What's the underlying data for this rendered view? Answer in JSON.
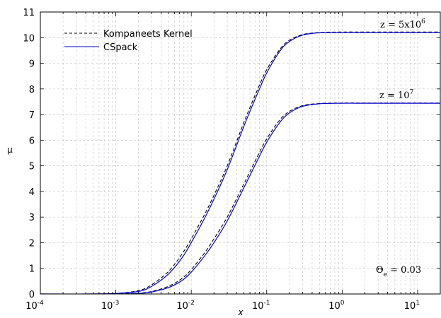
{
  "chart_data": {
    "type": "line",
    "xlabel": "x",
    "ylabel": "μ",
    "xscale": "log",
    "xlim": [
      0.0001,
      20
    ],
    "ylim": [
      0,
      11
    ],
    "x_ticks": [
      {
        "base": "10",
        "exp": "-4",
        "value": 0.0001
      },
      {
        "base": "10",
        "exp": "-3",
        "value": 0.001
      },
      {
        "base": "10",
        "exp": "-2",
        "value": 0.01
      },
      {
        "base": "10",
        "exp": "-1",
        "value": 0.1
      },
      {
        "base": "10",
        "exp": "0",
        "value": 1
      },
      {
        "base": "10",
        "exp": "1",
        "value": 10
      }
    ],
    "y_ticks": [
      "0",
      "1",
      "2",
      "3",
      "4",
      "5",
      "6",
      "7",
      "8",
      "9",
      "10",
      "11"
    ],
    "grid": true,
    "legend_position": "top-left",
    "legend": [
      {
        "label": "Kompaneets Kernel",
        "style": "dashed",
        "color": "#000000"
      },
      {
        "label": "CSpack",
        "style": "solid",
        "color": "#0000cc"
      }
    ],
    "annotations": [
      {
        "text": "z = 5x10",
        "sup": "6"
      },
      {
        "text": "z = 10",
        "sup": "7"
      },
      {
        "text": "Θ",
        "sub": "e",
        "suffix": " = 0.03"
      }
    ],
    "series": [
      {
        "name": "Kompaneets Kernel",
        "curve": "z = 5x10^6",
        "x": [
          0.0001,
          0.0005,
          0.001,
          0.002,
          0.003,
          0.005,
          0.0075,
          0.01,
          0.015,
          0.02,
          0.03,
          0.05,
          0.075,
          0.1,
          0.15,
          0.2,
          0.3,
          0.5,
          1,
          2,
          5,
          10,
          20
        ],
        "y": [
          0,
          0,
          0.02,
          0.13,
          0.36,
          0.88,
          1.55,
          2.15,
          3.1,
          3.85,
          5.0,
          6.7,
          7.95,
          8.75,
          9.55,
          9.9,
          10.12,
          10.2,
          10.22,
          10.22,
          10.22,
          10.22,
          10.22
        ]
      },
      {
        "name": "CSpack",
        "curve": "z = 5x10^6",
        "x": [
          0.0001,
          0.0005,
          0.001,
          0.002,
          0.003,
          0.005,
          0.0075,
          0.01,
          0.015,
          0.02,
          0.03,
          0.05,
          0.075,
          0.1,
          0.15,
          0.2,
          0.3,
          0.5,
          1,
          2,
          5,
          10,
          20
        ],
        "y": [
          0,
          0,
          0.02,
          0.1,
          0.3,
          0.78,
          1.4,
          2.0,
          2.95,
          3.7,
          4.85,
          6.55,
          7.8,
          8.62,
          9.48,
          9.85,
          10.1,
          10.19,
          10.2,
          10.2,
          10.2,
          10.2,
          10.2
        ]
      },
      {
        "name": "Kompaneets Kernel",
        "curve": "z = 10^7",
        "x": [
          0.0001,
          0.001,
          0.002,
          0.003,
          0.005,
          0.0075,
          0.01,
          0.015,
          0.02,
          0.03,
          0.05,
          0.075,
          0.1,
          0.15,
          0.2,
          0.3,
          0.5,
          1,
          2,
          5,
          10,
          20
        ],
        "y": [
          0,
          0,
          0.03,
          0.1,
          0.3,
          0.6,
          0.95,
          1.6,
          2.15,
          3.0,
          4.3,
          5.35,
          6.05,
          6.8,
          7.12,
          7.35,
          7.43,
          7.45,
          7.45,
          7.45,
          7.45,
          7.45
        ]
      },
      {
        "name": "CSpack",
        "curve": "z = 10^7",
        "x": [
          0.0001,
          0.001,
          0.002,
          0.003,
          0.005,
          0.0075,
          0.01,
          0.015,
          0.02,
          0.03,
          0.05,
          0.075,
          0.1,
          0.15,
          0.2,
          0.3,
          0.5,
          1,
          2,
          5,
          10,
          20
        ],
        "y": [
          0,
          0,
          0.02,
          0.08,
          0.25,
          0.52,
          0.85,
          1.48,
          2.0,
          2.85,
          4.15,
          5.2,
          5.92,
          6.7,
          7.06,
          7.32,
          7.42,
          7.44,
          7.44,
          7.44,
          7.44,
          7.44
        ]
      }
    ]
  }
}
